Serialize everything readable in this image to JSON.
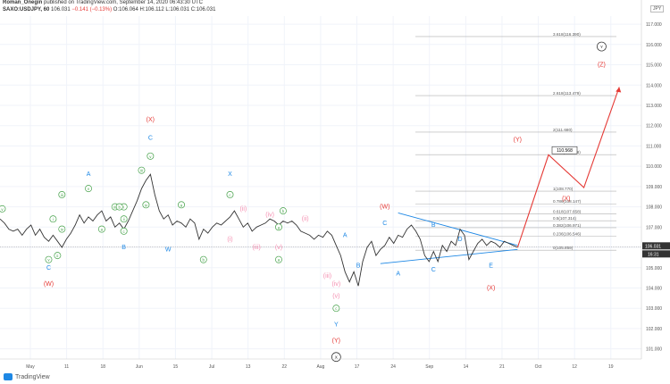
{
  "header": {
    "author": "Roman_Onegin",
    "published": "published on TradingView.com, September 14, 2020 06:43:30 UTC",
    "symbol": "SAXO:USDJPY, 60",
    "last": "106.031",
    "change": "−0.141 (−0.13%)",
    "ohlc": "O:106.064 H:106.112 L:106.031 C:106.031",
    "currency": "JPY"
  },
  "footer": {
    "brand": "TradingView"
  },
  "colors": {
    "price": "#333333",
    "red": "#e53935",
    "blue": "#1e88e5",
    "green": "#43a047",
    "pink": "#f48fb1",
    "fib": "#b0b0b0",
    "trendline": "#1e88e5"
  },
  "chart_data": {
    "type": "line",
    "title": "SAXO:USDJPY, 60",
    "x_axis": {
      "ticks": [
        "May",
        "11",
        "18",
        "Jun",
        "15",
        "Jul",
        "13",
        "22",
        "Aug",
        "17",
        "24",
        "Sep",
        "14",
        "21",
        "Oct",
        "12",
        "19"
      ]
    },
    "y_axis": {
      "ylim": [
        100.5,
        117.4
      ],
      "ticks": [
        "101.000",
        "102.000",
        "103.000",
        "104.000",
        "105.000",
        "106.000",
        "107.000",
        "108.000",
        "109.000",
        "110.000",
        "111.000",
        "112.000",
        "113.000",
        "114.000",
        "115.000",
        "116.000",
        "117.000"
      ],
      "current_price": "106.031",
      "current_time": "16:31"
    },
    "series": [
      {
        "values": [
          [
            0,
            107.4
          ],
          [
            1,
            107.2
          ],
          [
            2,
            106.9
          ],
          [
            3,
            106.8
          ],
          [
            4,
            106.9
          ],
          [
            5,
            106.6
          ],
          [
            6,
            106.9
          ],
          [
            7,
            107.1
          ],
          [
            8,
            106.6
          ],
          [
            9,
            106.9
          ],
          [
            10,
            106.5
          ],
          [
            11,
            106.3
          ],
          [
            12,
            106.6
          ],
          [
            13,
            106.3
          ],
          [
            14,
            106.0
          ],
          [
            15,
            106.4
          ],
          [
            16,
            106.7
          ],
          [
            17,
            107.1
          ],
          [
            18,
            107.6
          ],
          [
            19,
            107.2
          ],
          [
            20,
            107.5
          ],
          [
            21,
            107.3
          ],
          [
            22,
            107.6
          ],
          [
            23,
            107.8
          ],
          [
            24,
            107.3
          ],
          [
            25,
            107.5
          ],
          [
            26,
            107.0
          ],
          [
            27,
            107.2
          ],
          [
            28,
            106.9
          ],
          [
            29,
            107.3
          ],
          [
            30,
            107.8
          ],
          [
            31,
            108.3
          ],
          [
            32,
            108.9
          ],
          [
            33,
            109.3
          ],
          [
            34,
            109.6
          ],
          [
            35,
            108.6
          ],
          [
            36,
            107.8
          ],
          [
            37,
            107.4
          ],
          [
            38,
            107.6
          ],
          [
            39,
            107.1
          ],
          [
            40,
            107.3
          ],
          [
            41,
            107.2
          ],
          [
            42,
            107.0
          ],
          [
            43,
            107.4
          ],
          [
            44,
            107.2
          ],
          [
            45,
            106.4
          ],
          [
            46,
            106.9
          ],
          [
            47,
            106.7
          ],
          [
            48,
            107.0
          ],
          [
            49,
            107.2
          ],
          [
            50,
            107.1
          ],
          [
            51,
            107.3
          ],
          [
            52,
            107.5
          ],
          [
            53,
            107.8
          ],
          [
            54,
            107.4
          ],
          [
            55,
            107.0
          ],
          [
            56,
            107.2
          ],
          [
            57,
            106.8
          ],
          [
            58,
            107.0
          ],
          [
            59,
            107.1
          ],
          [
            60,
            107.2
          ],
          [
            61,
            107.4
          ],
          [
            62,
            107.3
          ],
          [
            63,
            107.1
          ],
          [
            64,
            107.3
          ],
          [
            65,
            107.2
          ],
          [
            66,
            107.3
          ],
          [
            67,
            107.1
          ],
          [
            68,
            106.8
          ],
          [
            69,
            106.7
          ],
          [
            70,
            106.6
          ],
          [
            71,
            106.4
          ],
          [
            72,
            106.6
          ],
          [
            73,
            106.5
          ],
          [
            74,
            106.8
          ],
          [
            75,
            106.6
          ],
          [
            76,
            106.1
          ],
          [
            77,
            105.6
          ],
          [
            78,
            104.8
          ],
          [
            79,
            104.3
          ],
          [
            80,
            104.8
          ],
          [
            81,
            104.1
          ],
          [
            82,
            105.3
          ],
          [
            83,
            106.0
          ],
          [
            84,
            106.3
          ],
          [
            85,
            105.6
          ],
          [
            86,
            105.9
          ],
          [
            87,
            106.1
          ],
          [
            88,
            106.5
          ],
          [
            89,
            106.2
          ],
          [
            90,
            106.6
          ],
          [
            91,
            106.5
          ],
          [
            92,
            106.9
          ],
          [
            93,
            107.1
          ],
          [
            94,
            106.8
          ],
          [
            95,
            106.4
          ],
          [
            96,
            105.6
          ],
          [
            97,
            105.3
          ],
          [
            98,
            105.8
          ],
          [
            99,
            105.3
          ],
          [
            100,
            106.1
          ],
          [
            101,
            105.8
          ],
          [
            102,
            106.3
          ],
          [
            103,
            106.1
          ],
          [
            104,
            106.9
          ],
          [
            105,
            106.6
          ],
          [
            106,
            105.4
          ],
          [
            107,
            105.8
          ],
          [
            108,
            106.2
          ],
          [
            109,
            106.4
          ],
          [
            110,
            106.1
          ],
          [
            111,
            106.3
          ],
          [
            112,
            106.2
          ],
          [
            113,
            106.0
          ],
          [
            114,
            106.3
          ],
          [
            115,
            106.2
          ],
          [
            116,
            106.1
          ],
          [
            117,
            106.0
          ]
        ]
      }
    ],
    "projection": {
      "color": "#e53935",
      "points": [
        [
          117,
          106.0
        ],
        [
          124,
          110.56
        ],
        [
          132,
          108.95
        ],
        [
          140,
          113.9
        ]
      ]
    },
    "fib_levels": [
      {
        "label": "3.618(116.390)",
        "value": 116.39
      },
      {
        "label": "2.618(113.479)",
        "value": 113.479
      },
      {
        "label": "2(111.680)",
        "value": 111.68
      },
      {
        "label": "1.618(110.568)",
        "value": 110.568
      },
      {
        "label": "1(108.770)",
        "value": 108.77
      },
      {
        "label": "0.786(108.147)",
        "value": 108.147
      },
      {
        "label": "0.618(107.658)",
        "value": 107.658
      },
      {
        "label": "0.5(107.314)",
        "value": 107.314
      },
      {
        "label": "0.382(106.971)",
        "value": 106.971
      },
      {
        "label": "0.236(106.546)",
        "value": 106.546
      },
      {
        "label": "0(105.859)",
        "value": 105.859
      }
    ],
    "price_box": "110.568",
    "triangle": {
      "upper": [
        [
          90,
          107.7
        ],
        [
          117,
          106.1
        ]
      ],
      "lower": [
        [
          86,
          105.2
        ],
        [
          117,
          105.9
        ]
      ]
    },
    "annotations": [
      {
        "t": "v",
        "c": "green",
        "circle": true,
        "x": 0.5,
        "y": 107.9
      },
      {
        "t": "iii",
        "c": "green",
        "circle": true,
        "x": 14,
        "y": 108.6
      },
      {
        "t": "i",
        "c": "green",
        "circle": true,
        "x": 12,
        "y": 107.4
      },
      {
        "t": "ii",
        "c": "green",
        "circle": true,
        "x": 13,
        "y": 105.6
      },
      {
        "t": "iv",
        "c": "green",
        "circle": true,
        "x": 14,
        "y": 106.9
      },
      {
        "t": "v",
        "c": "green",
        "circle": true,
        "x": 11,
        "y": 105.4
      },
      {
        "t": "C",
        "c": "blue",
        "circle": false,
        "x": 11,
        "y": 105.0
      },
      {
        "t": "(W)",
        "c": "red",
        "circle": false,
        "x": 11,
        "y": 104.2
      },
      {
        "t": "v",
        "c": "green",
        "circle": true,
        "x": 20,
        "y": 108.9
      },
      {
        "t": "A",
        "c": "blue",
        "circle": false,
        "x": 20,
        "y": 109.6
      },
      {
        "t": "a",
        "c": "green",
        "circle": true,
        "x": 23,
        "y": 106.9
      },
      {
        "t": "iii",
        "c": "green",
        "circle": true,
        "x": 26,
        "y": 108.0
      },
      {
        "t": "i",
        "c": "green",
        "circle": true,
        "x": 28,
        "y": 108.0
      },
      {
        "t": "ii",
        "c": "green",
        "circle": true,
        "x": 28,
        "y": 107.4
      },
      {
        "t": "c",
        "c": "green",
        "circle": true,
        "x": 28,
        "y": 106.8
      },
      {
        "t": "b",
        "c": "green",
        "circle": true,
        "x": 27,
        "y": 108.0
      },
      {
        "t": "B",
        "c": "blue",
        "circle": false,
        "x": 28,
        "y": 106.0
      },
      {
        "t": "iii",
        "c": "green",
        "circle": true,
        "x": 32,
        "y": 109.8
      },
      {
        "t": "iv",
        "c": "green",
        "circle": true,
        "x": 33,
        "y": 108.1
      },
      {
        "t": "v",
        "c": "green",
        "circle": true,
        "x": 34,
        "y": 110.5
      },
      {
        "t": "C",
        "c": "blue",
        "circle": false,
        "x": 34,
        "y": 111.4
      },
      {
        "t": "(X)",
        "c": "red",
        "circle": false,
        "x": 34,
        "y": 112.3
      },
      {
        "t": "a",
        "c": "green",
        "circle": true,
        "x": 41,
        "y": 108.1
      },
      {
        "t": "W",
        "c": "blue",
        "circle": false,
        "x": 38,
        "y": 105.9
      },
      {
        "t": "b",
        "c": "green",
        "circle": true,
        "x": 46,
        "y": 105.4
      },
      {
        "t": "c",
        "c": "green",
        "circle": true,
        "x": 52,
        "y": 108.6
      },
      {
        "t": "X",
        "c": "blue",
        "circle": false,
        "x": 52,
        "y": 109.6
      },
      {
        "t": "(i)",
        "c": "pink",
        "circle": false,
        "x": 52,
        "y": 106.4
      },
      {
        "t": "(ii)",
        "c": "pink",
        "circle": false,
        "x": 55,
        "y": 107.9
      },
      {
        "t": "(iii)",
        "c": "pink",
        "circle": false,
        "x": 58,
        "y": 106.0
      },
      {
        "t": "(iv)",
        "c": "pink",
        "circle": false,
        "x": 61,
        "y": 107.6
      },
      {
        "t": "b",
        "c": "green",
        "circle": true,
        "x": 64,
        "y": 107.8
      },
      {
        "t": "a",
        "c": "green",
        "circle": true,
        "x": 63,
        "y": 107.0
      },
      {
        "t": "(v)",
        "c": "pink",
        "circle": false,
        "x": 63,
        "y": 106.0
      },
      {
        "t": "a",
        "c": "green",
        "circle": true,
        "x": 63,
        "y": 105.4
      },
      {
        "t": "(ii)",
        "c": "pink",
        "circle": false,
        "x": 69,
        "y": 107.4
      },
      {
        "t": "(iii)",
        "c": "pink",
        "circle": false,
        "x": 74,
        "y": 104.6
      },
      {
        "t": "(iv)",
        "c": "pink",
        "circle": false,
        "x": 76,
        "y": 104.2
      },
      {
        "t": "(v)",
        "c": "pink",
        "circle": false,
        "x": 76,
        "y": 103.6
      },
      {
        "t": "c",
        "c": "green",
        "circle": true,
        "x": 76,
        "y": 103.0
      },
      {
        "t": "Y",
        "c": "blue",
        "circle": false,
        "x": 76,
        "y": 102.2
      },
      {
        "t": "(Y)",
        "c": "red",
        "circle": false,
        "x": 76,
        "y": 101.4
      },
      {
        "t": "X",
        "c": "black",
        "circle": true,
        "x": 76,
        "y": 100.6
      },
      {
        "t": "A",
        "c": "blue",
        "circle": false,
        "x": 78,
        "y": 106.6
      },
      {
        "t": "B",
        "c": "blue",
        "circle": false,
        "x": 81,
        "y": 105.1
      },
      {
        "t": "(W)",
        "c": "red",
        "circle": false,
        "x": 87,
        "y": 108.0
      },
      {
        "t": "C",
        "c": "blue",
        "circle": false,
        "x": 87,
        "y": 107.2
      },
      {
        "t": "A",
        "c": "blue",
        "circle": false,
        "x": 90,
        "y": 104.7
      },
      {
        "t": "B",
        "c": "blue",
        "circle": false,
        "x": 98,
        "y": 107.1
      },
      {
        "t": "C",
        "c": "blue",
        "circle": false,
        "x": 98,
        "y": 104.9
      },
      {
        "t": "D",
        "c": "blue",
        "circle": false,
        "x": 104,
        "y": 106.4
      },
      {
        "t": "E",
        "c": "blue",
        "circle": false,
        "x": 111,
        "y": 105.1
      },
      {
        "t": "(X)",
        "c": "red",
        "circle": false,
        "x": 111,
        "y": 104.0
      },
      {
        "t": "(Y)",
        "c": "red",
        "circle": false,
        "x": 117,
        "y": 111.3
      },
      {
        "t": "(X)",
        "c": "red",
        "circle": false,
        "x": 128,
        "y": 108.4
      },
      {
        "t": "(Z)",
        "c": "red",
        "circle": false,
        "x": 136,
        "y": 115.0
      },
      {
        "t": "Y",
        "c": "black",
        "circle": true,
        "x": 136,
        "y": 115.9
      }
    ]
  }
}
